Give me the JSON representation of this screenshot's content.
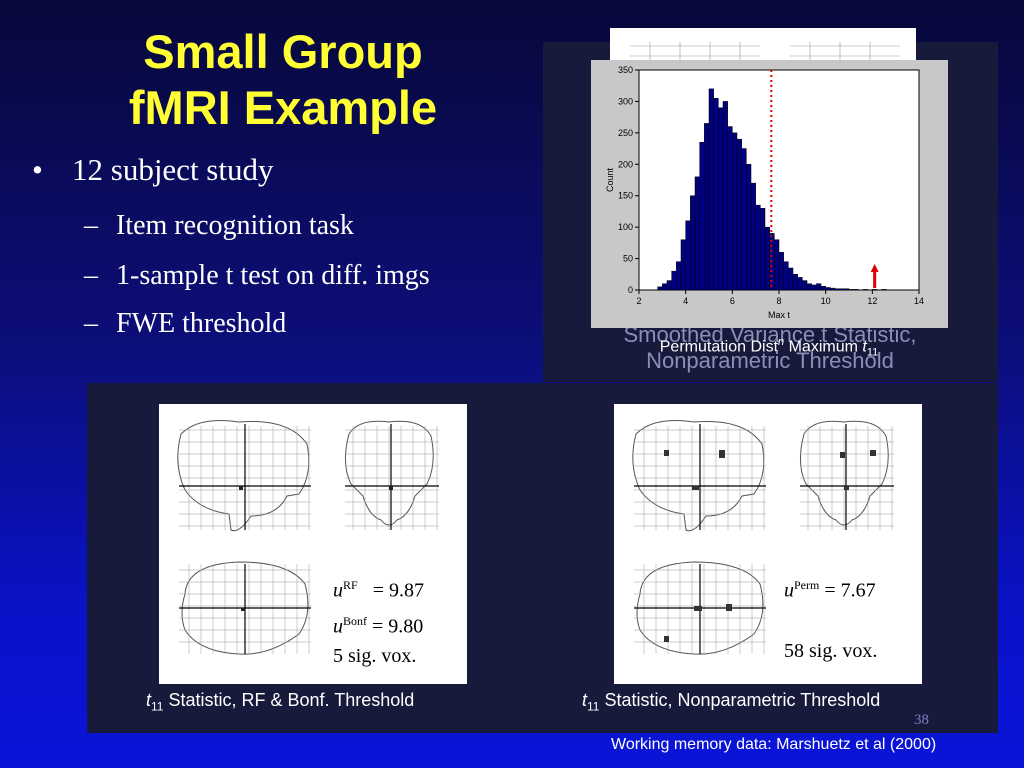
{
  "slide": {
    "title_line1": "Small Group",
    "title_line2": "fMRI Example",
    "bullets": {
      "main": "12 subject study",
      "sub": [
        "Item recognition task",
        "1-sample t test on diff. imgs",
        "FWE threshold"
      ]
    },
    "page_number": "38",
    "credit": "Working memory data: Marshuetz et al (2000)"
  },
  "top_right": {
    "ghost_caption_line1": "Smoothed Variance t Statistic,",
    "ghost_caption_line2": "Nonparametric Threshold",
    "perm_caption_text": "Permutation Dist",
    "perm_caption_sup": "n",
    "perm_caption_rest": " Maximum ",
    "perm_caption_t": "t",
    "perm_caption_sub": "11"
  },
  "left_panel": {
    "caption_t": "t",
    "caption_sub": "11",
    "caption_rest": " Statistic, RF & Bonf. Threshold",
    "u_rf_sup": "RF",
    "u_rf_value": "= 9.87",
    "u_bonf_sup": "Bonf",
    "u_bonf_value": "= 9.80",
    "sig_vox": "5 sig. vox."
  },
  "right_panel": {
    "caption_t": "t",
    "caption_sub": "11",
    "caption_rest": " Statistic, Nonparametric Threshold",
    "u_perm_sup": "Perm",
    "u_perm_value": "= 7.67",
    "sig_vox": "58 sig. vox."
  },
  "chart_data": {
    "type": "bar",
    "xlabel": "Max t",
    "ylabel": "Count",
    "xlim": [
      2,
      14
    ],
    "ylim": [
      0,
      350
    ],
    "xticks": [
      2,
      4,
      6,
      8,
      10,
      12,
      14
    ],
    "yticks": [
      0,
      50,
      100,
      150,
      200,
      250,
      300,
      350
    ],
    "bin_width": 0.2,
    "bin_starts": [
      2.8,
      3.0,
      3.2,
      3.4,
      3.6,
      3.8,
      4.0,
      4.2,
      4.4,
      4.6,
      4.8,
      5.0,
      5.2,
      5.4,
      5.6,
      5.8,
      6.0,
      6.2,
      6.4,
      6.6,
      6.8,
      7.0,
      7.2,
      7.4,
      7.6,
      7.8,
      8.0,
      8.2,
      8.4,
      8.6,
      8.8,
      9.0,
      9.2,
      9.4,
      9.6,
      9.8,
      10.0,
      10.2,
      10.4,
      10.6,
      10.8,
      11.0,
      11.2,
      11.4,
      11.6,
      11.8,
      12.0,
      12.2,
      12.4
    ],
    "counts": [
      5,
      10,
      15,
      30,
      45,
      80,
      110,
      150,
      180,
      235,
      265,
      320,
      305,
      290,
      300,
      260,
      250,
      240,
      225,
      200,
      170,
      135,
      130,
      100,
      90,
      80,
      60,
      45,
      35,
      25,
      20,
      15,
      10,
      8,
      10,
      6,
      4,
      3,
      2,
      2,
      2,
      1,
      1,
      0,
      1,
      0,
      1,
      0,
      1
    ],
    "threshold_line": 7.67,
    "observed_marker": 12.1,
    "bar_color": "#000080",
    "threshold_color": "#e00000",
    "marker_color": "#e00000"
  }
}
